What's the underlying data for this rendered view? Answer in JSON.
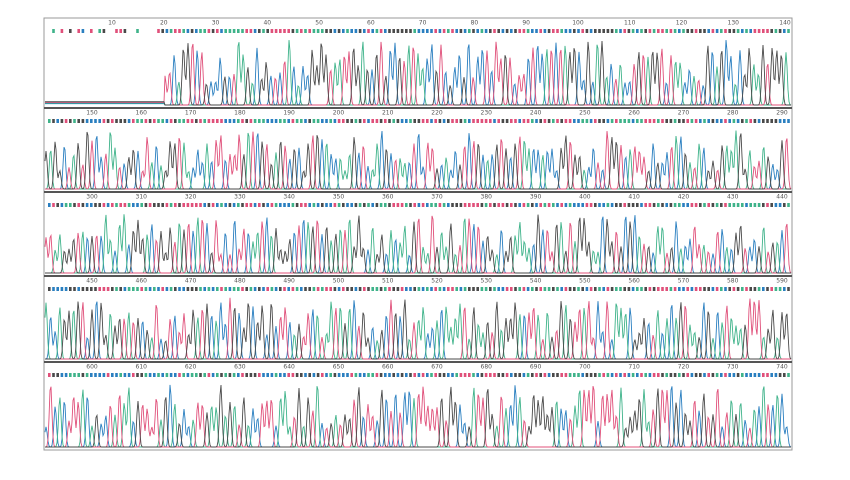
{
  "rows": [
    {
      "positions": [
        10,
        20,
        30,
        40,
        50,
        60,
        70,
        80,
        90,
        100,
        110,
        120,
        130,
        140
      ]
    },
    {
      "positions": [
        150,
        160,
        170,
        180,
        190,
        200,
        210,
        220,
        230,
        240,
        250,
        260,
        270,
        280,
        290
      ]
    },
    {
      "positions": [
        300,
        310,
        320,
        330,
        340,
        350,
        360,
        370,
        380,
        390,
        400,
        410,
        420,
        430,
        440
      ]
    },
    {
      "positions": [
        450,
        460,
        470,
        480,
        490,
        500,
        510,
        520,
        530,
        540,
        550,
        560,
        570,
        580,
        590
      ]
    },
    {
      "positions": [
        600,
        610,
        620,
        630,
        640,
        650,
        660,
        670,
        680,
        690,
        700,
        710,
        720,
        730,
        740
      ]
    }
  ]
}
